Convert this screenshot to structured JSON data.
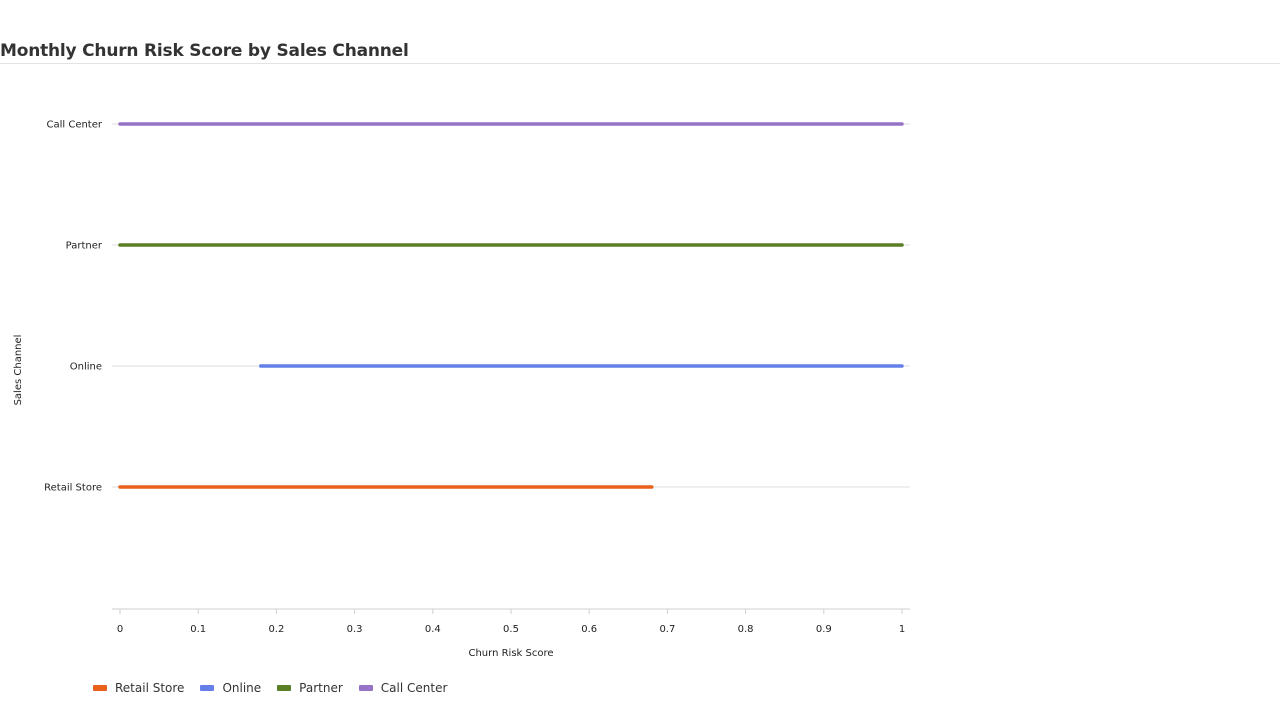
{
  "page": {
    "title": "Monthly Churn Risk Score by Sales Channel"
  },
  "chart_data": {
    "type": "line",
    "title": "Monthly Churn Risk Score by Sales Channel",
    "xlabel": "Churn Risk Score",
    "ylabel": "Sales Channel",
    "xlim": [
      0,
      1
    ],
    "x_ticks": [
      0,
      0.1,
      0.2,
      0.3,
      0.4,
      0.5,
      0.6,
      0.7,
      0.8,
      0.9,
      1
    ],
    "x_tick_labels": [
      "0",
      "0.1",
      "0.2",
      "0.3",
      "0.4",
      "0.5",
      "0.6",
      "0.7",
      "0.8",
      "0.9",
      "1"
    ],
    "categories": [
      "Retail Store",
      "Online",
      "Partner",
      "Call Center"
    ],
    "grid": true,
    "legend_position": "bottom-left",
    "series": [
      {
        "name": "Retail Store",
        "category": "Retail Store",
        "color": "#e8601a",
        "range": [
          0.0,
          0.68
        ]
      },
      {
        "name": "Online",
        "category": "Online",
        "color": "#6480e8",
        "range": [
          0.18,
          1.0
        ]
      },
      {
        "name": "Partner",
        "category": "Partner",
        "color": "#5a7f24",
        "range": [
          0.0,
          1.0
        ]
      },
      {
        "name": "Call Center",
        "category": "Call Center",
        "color": "#9673c6",
        "range": [
          0.0,
          1.0
        ]
      }
    ]
  }
}
